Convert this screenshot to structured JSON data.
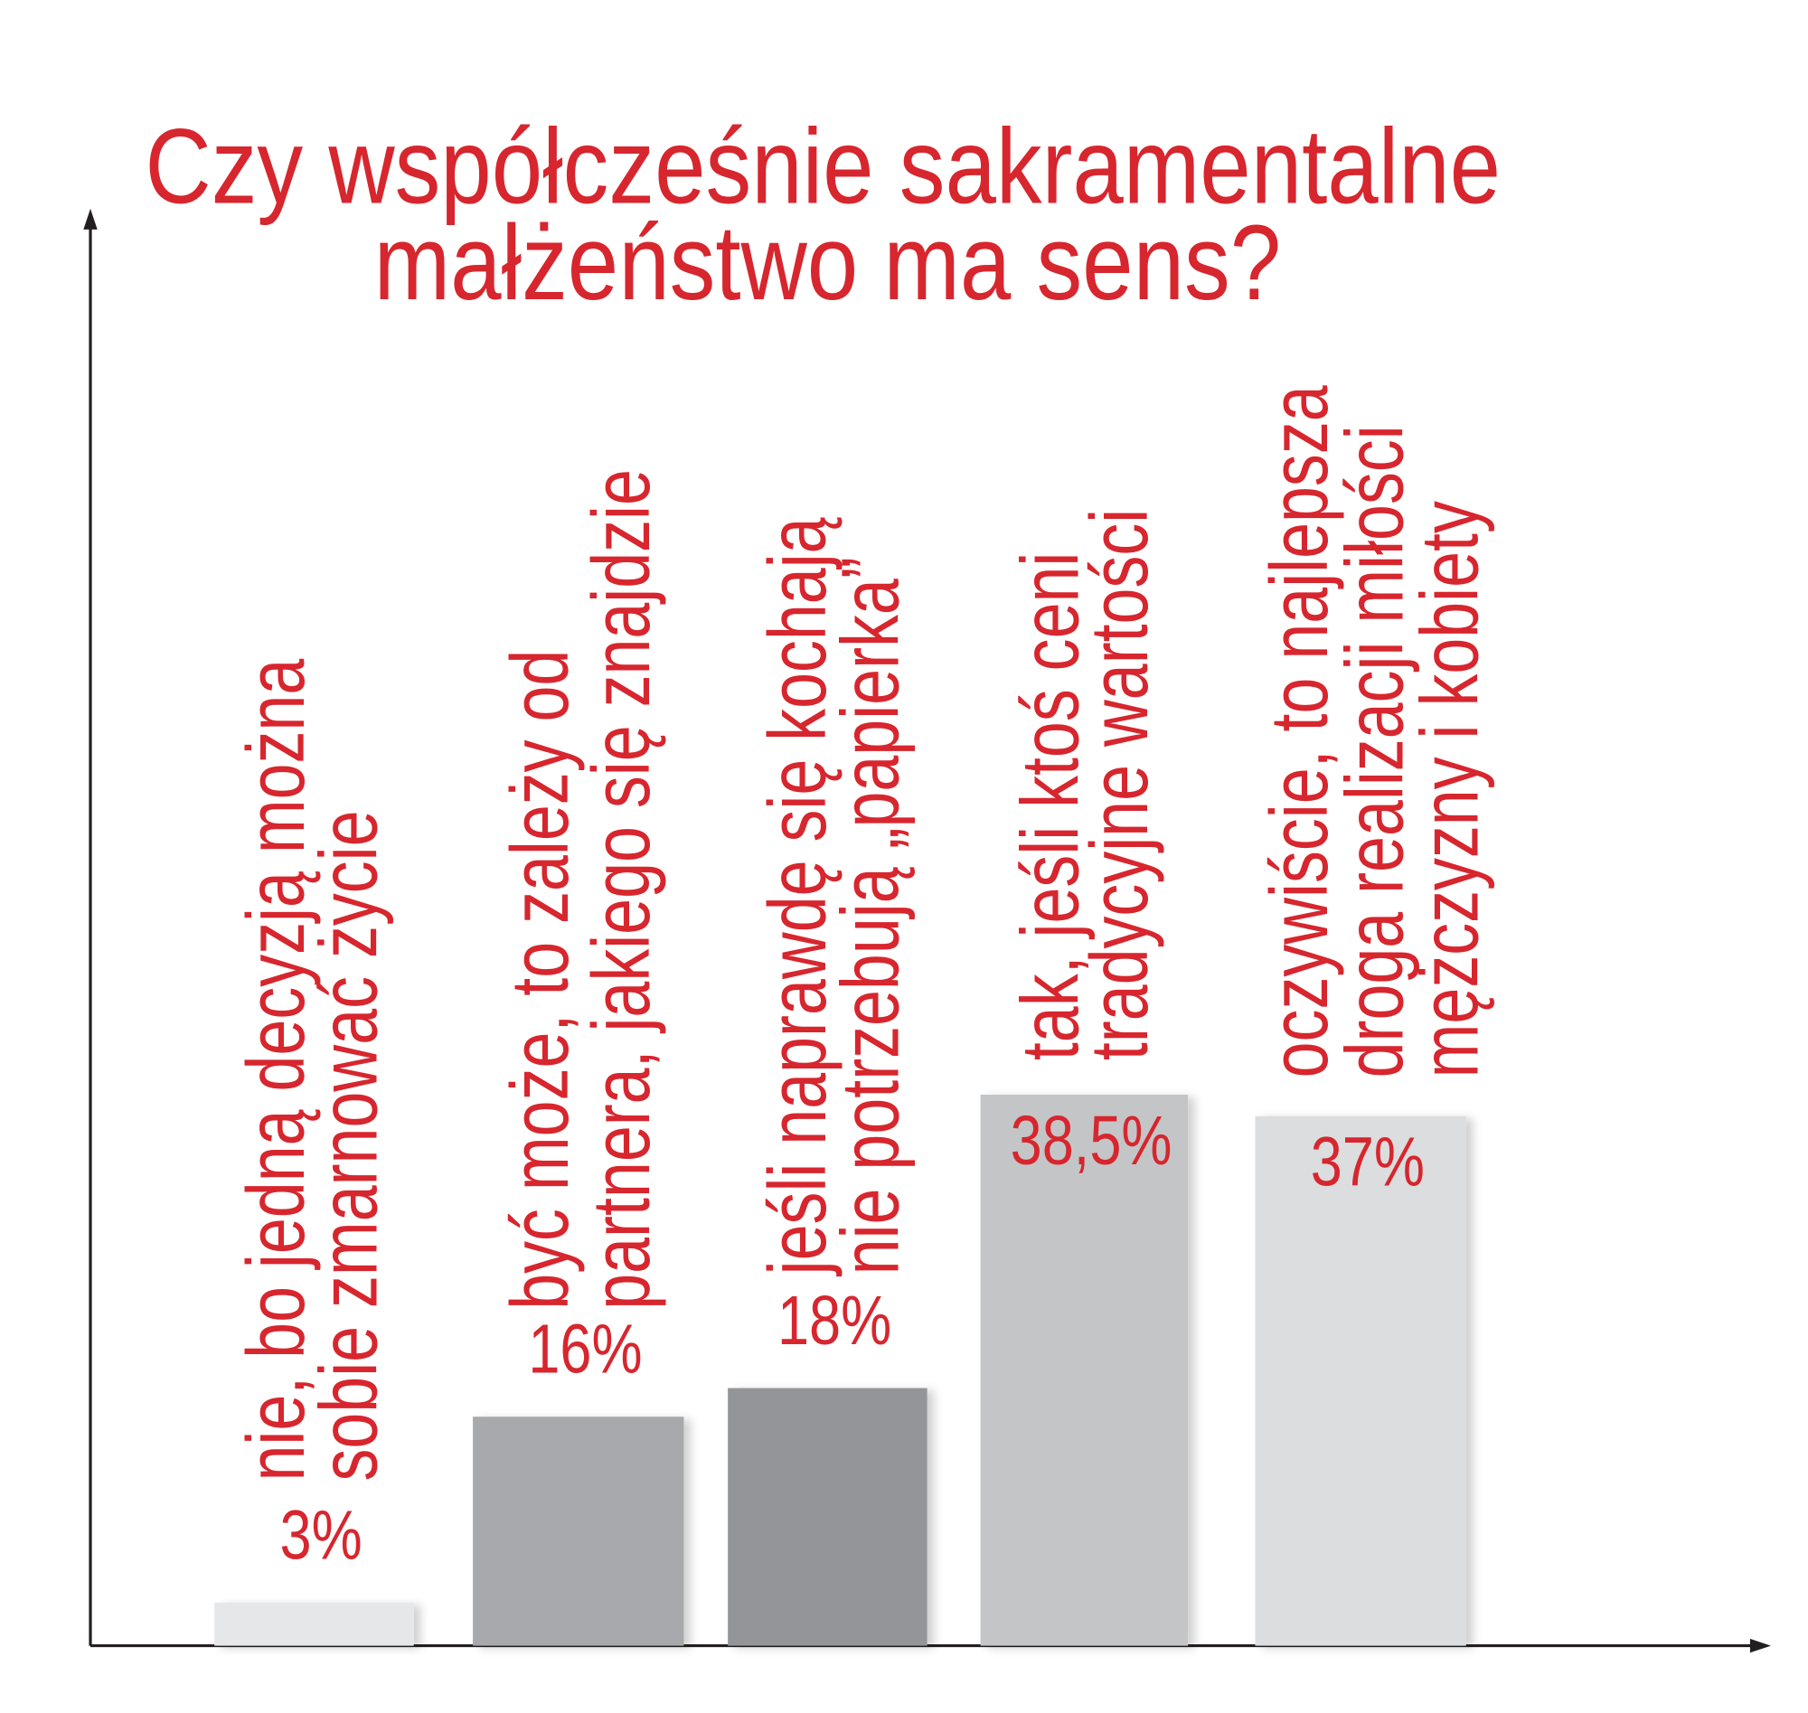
{
  "chart_data": {
    "type": "bar",
    "title": [
      "Czy współcześnie sakramentalne",
      "małżeństwo ma sens?"
    ],
    "categories": [
      [
        "nie, bo jedną decyzją można",
        "sobie zmarnować życie"
      ],
      [
        "być może, to zależy od",
        "partnera, jakiego się znajdzie"
      ],
      [
        "jeśli naprawdę się kochają",
        "nie potrzebują „papierka”"
      ],
      [
        "tak, jeśli ktoś ceni",
        "tradycyjne wartości"
      ],
      [
        "oczywiście, to najlepsza",
        "droga realizacji miłości",
        "mężczyzny i kobiety"
      ]
    ],
    "values": [
      3,
      16,
      18,
      38.5,
      37
    ],
    "value_labels": [
      "3%",
      "16%",
      "18%",
      "38,5%",
      "37%"
    ],
    "colors": [
      "#e6e7e8",
      "#a7a9ac",
      "#939598",
      "#c4c5c7",
      "#dcddde"
    ],
    "text_color": "#d7262e",
    "ylim": [
      0,
      100
    ]
  }
}
